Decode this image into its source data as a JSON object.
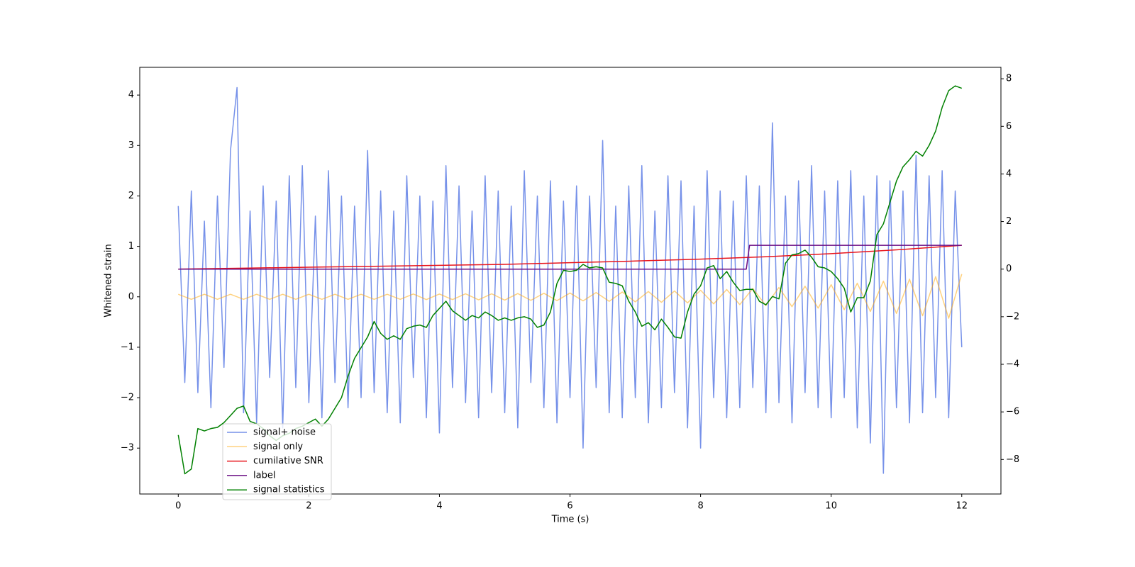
{
  "chart_data": {
    "type": "line",
    "xlabel": "Time (s)",
    "ylabel": "Whitened strain",
    "xlim": [
      -0.59,
      12.6
    ],
    "ylim": [
      -3.91,
      4.55
    ],
    "y2lim": [
      -9.45,
      8.48
    ],
    "xticks": [
      0,
      2,
      4,
      6,
      8,
      10,
      12
    ],
    "yticks": [
      {
        "value": -3,
        "label": "−3"
      },
      {
        "value": -2,
        "label": "−2"
      },
      {
        "value": -1,
        "label": "−1"
      },
      0,
      1,
      2,
      3,
      4
    ],
    "y2ticks": [
      {
        "value": -8,
        "label": "−8"
      },
      {
        "value": -6,
        "label": "−6"
      },
      {
        "value": -4,
        "label": "−4"
      },
      {
        "value": -2,
        "label": "−2"
      },
      0,
      2,
      4,
      6,
      8
    ],
    "x": [
      0,
      0.1,
      0.2,
      0.3,
      0.4,
      0.5,
      0.6,
      0.7,
      0.8,
      0.9,
      1,
      1.1,
      1.2,
      1.3,
      1.4,
      1.5,
      1.6,
      1.7,
      1.8,
      1.9,
      2,
      2.1,
      2.2,
      2.3,
      2.4,
      2.5,
      2.6,
      2.7,
      2.8,
      2.9,
      3,
      3.1,
      3.2,
      3.3,
      3.4,
      3.5,
      3.6,
      3.7,
      3.8,
      3.9,
      4,
      4.1,
      4.2,
      4.3,
      4.4,
      4.5,
      4.6,
      4.7,
      4.8,
      4.9,
      5,
      5.1,
      5.2,
      5.3,
      5.4,
      5.5,
      5.6,
      5.7,
      5.8,
      5.9,
      6,
      6.1,
      6.2,
      6.3,
      6.4,
      6.5,
      6.6,
      6.7,
      6.8,
      6.9,
      7,
      7.1,
      7.2,
      7.3,
      7.4,
      7.5,
      7.6,
      7.7,
      7.8,
      7.9,
      8,
      8.1,
      8.2,
      8.3,
      8.4,
      8.5,
      8.6,
      8.7,
      8.8,
      8.9,
      9,
      9.1,
      9.2,
      9.3,
      9.4,
      9.5,
      9.6,
      9.7,
      9.8,
      9.9,
      10,
      10.1,
      10.2,
      10.3,
      10.4,
      10.5,
      10.6,
      10.7,
      10.8,
      10.9,
      11,
      11.1,
      11.2,
      11.3,
      11.4,
      11.5,
      11.6,
      11.7,
      11.8,
      11.9,
      12
    ],
    "series": [
      {
        "name": "signal+ noise",
        "color": "#6f8be8",
        "opacity": 0.95,
        "values": [
          1.8,
          -1.7,
          2.1,
          -1.9,
          1.5,
          -2.2,
          2.0,
          -1.4,
          2.9,
          4.15,
          -2.3,
          1.7,
          -2.5,
          2.2,
          -1.6,
          1.9,
          -2.6,
          2.4,
          -1.8,
          2.6,
          -2.1,
          1.6,
          -2.4,
          2.5,
          -1.7,
          2.0,
          -2.2,
          1.8,
          -2.0,
          2.9,
          -1.9,
          2.1,
          -2.3,
          1.7,
          -2.5,
          2.4,
          -1.6,
          2.0,
          -2.4,
          1.9,
          -2.7,
          2.6,
          -1.8,
          2.2,
          -2.1,
          1.7,
          -2.4,
          2.4,
          -1.9,
          2.1,
          -2.3,
          1.8,
          -2.6,
          2.5,
          -1.7,
          2.0,
          -2.2,
          2.3,
          -2.5,
          1.9,
          -2.0,
          2.2,
          -3.0,
          2.0,
          -1.8,
          3.1,
          -2.3,
          1.8,
          -2.4,
          2.2,
          -2.0,
          2.6,
          -2.5,
          1.7,
          -2.2,
          2.4,
          -1.9,
          2.3,
          -2.6,
          1.8,
          -3.0,
          2.5,
          -2.0,
          2.1,
          -2.4,
          1.9,
          -2.2,
          2.4,
          -1.8,
          2.2,
          -2.3,
          3.45,
          -2.1,
          2.0,
          -2.5,
          2.3,
          -1.9,
          2.6,
          -2.2,
          2.1,
          -2.4,
          2.3,
          -2.0,
          2.5,
          -2.6,
          2.0,
          -2.9,
          2.4,
          -3.5,
          2.3,
          -2.2,
          2.1,
          -2.5,
          2.8,
          -2.3,
          2.4,
          -2.0,
          2.5,
          -2.4,
          2.1,
          -1.0
        ]
      },
      {
        "name": "signal only",
        "color": "#ffa500",
        "opacity": 0.5,
        "x": [
          0,
          0.2,
          0.4,
          0.6,
          0.8,
          1,
          1.2,
          1.4,
          1.6,
          1.8,
          2,
          2.2,
          2.4,
          2.6,
          2.8,
          3,
          3.2,
          3.4,
          3.6,
          3.8,
          4,
          4.2,
          4.4,
          4.6,
          4.8,
          5,
          5.2,
          5.4,
          5.6,
          5.8,
          6,
          6.2,
          6.4,
          6.6,
          6.8,
          7,
          7.2,
          7.4,
          7.6,
          7.8,
          8,
          8.2,
          8.4,
          8.6,
          8.8,
          9,
          9.2,
          9.4,
          9.6,
          9.8,
          10,
          10.2,
          10.4,
          10.6,
          10.8,
          11,
          11.2,
          11.4,
          11.6,
          11.8,
          12
        ],
        "values": [
          0.05,
          -0.05,
          0.05,
          -0.05,
          0.05,
          -0.05,
          0.05,
          -0.05,
          0.05,
          -0.05,
          0.05,
          -0.05,
          0.05,
          -0.05,
          0.05,
          -0.05,
          0.05,
          -0.05,
          0.055,
          -0.055,
          0.055,
          -0.055,
          0.06,
          -0.06,
          0.06,
          -0.065,
          0.065,
          -0.07,
          0.07,
          -0.075,
          0.075,
          -0.08,
          0.085,
          -0.09,
          0.095,
          -0.1,
          0.105,
          -0.11,
          0.115,
          -0.12,
          0.13,
          -0.14,
          0.145,
          -0.155,
          0.165,
          -0.175,
          0.185,
          -0.195,
          0.21,
          -0.225,
          0.24,
          -0.255,
          0.27,
          -0.29,
          0.31,
          -0.33,
          0.35,
          -0.375,
          0.4,
          -0.425,
          0.45
        ]
      },
      {
        "name": "cumilative SNR",
        "color": "#e8151c",
        "opacity": 1,
        "axis": "y2",
        "x": [
          0,
          1,
          2,
          3,
          4,
          5,
          6,
          7,
          8,
          9,
          10,
          11,
          12
        ],
        "values": [
          0,
          0.04,
          0.08,
          0.12,
          0.16,
          0.2,
          0.27,
          0.34,
          0.42,
          0.52,
          0.65,
          0.81,
          1.0
        ]
      },
      {
        "name": "label",
        "color": "#6a0d83",
        "opacity": 1,
        "axis": "y2",
        "x": [
          0,
          8.7,
          8.75,
          12
        ],
        "values": [
          0,
          0,
          1,
          1
        ]
      },
      {
        "name": "signal statistics",
        "color": "#008000",
        "opacity": 1,
        "axis": "y2",
        "values": [
          -6.97,
          -8.6,
          -8.4,
          -6.7,
          -6.8,
          -6.7,
          -6.65,
          -6.45,
          -6.15,
          -5.85,
          -5.75,
          -6.4,
          -6.5,
          -6.7,
          -7.0,
          -7.2,
          -7.0,
          -6.9,
          -6.7,
          -6.6,
          -6.45,
          -6.3,
          -6.6,
          -6.3,
          -5.85,
          -5.4,
          -4.5,
          -3.75,
          -3.3,
          -2.85,
          -2.2,
          -2.7,
          -2.95,
          -2.8,
          -2.95,
          -2.5,
          -2.4,
          -2.35,
          -2.45,
          -1.95,
          -1.65,
          -1.35,
          -1.75,
          -1.95,
          -2.15,
          -1.95,
          -2.05,
          -1.8,
          -1.95,
          -2.15,
          -2.05,
          -2.15,
          -2.05,
          -2.0,
          -2.1,
          -2.45,
          -2.35,
          -1.8,
          -0.6,
          -0.05,
          -0.1,
          -0.05,
          0.2,
          0.05,
          0.1,
          0.05,
          -0.55,
          -0.6,
          -0.7,
          -1.35,
          -1.8,
          -2.4,
          -2.25,
          -2.55,
          -2.1,
          -2.45,
          -2.85,
          -2.9,
          -1.8,
          -1.05,
          -0.7,
          0.05,
          0.15,
          -0.4,
          -0.1,
          -0.55,
          -0.9,
          -0.85,
          -0.85,
          -1.35,
          -1.5,
          -1.15,
          -1.25,
          0.25,
          0.6,
          0.65,
          0.8,
          0.5,
          0.1,
          0.05,
          -0.1,
          -0.4,
          -0.8,
          -1.8,
          -1.2,
          -1.2,
          -0.5,
          1.45,
          1.9,
          2.8,
          3.7,
          4.3,
          4.6,
          4.95,
          4.75,
          5.2,
          5.8,
          6.8,
          7.5,
          7.7,
          7.6
        ]
      }
    ]
  }
}
